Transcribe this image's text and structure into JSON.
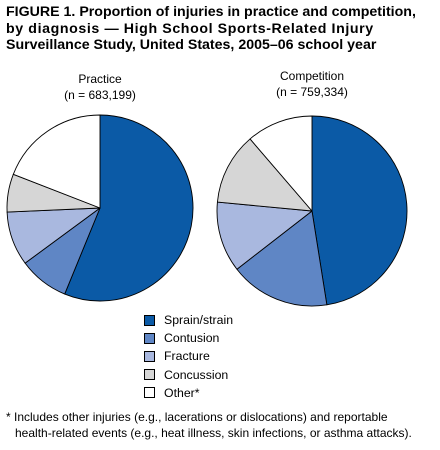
{
  "figure": {
    "title_line1": "FIGURE 1. Proportion of injuries in practice and competition,",
    "title_line2": "by diagnosis — High School Sports-Related Injury",
    "title_line3": "Surveillance Study, United States, 2005–06 school year"
  },
  "chart_data": [
    {
      "type": "pie",
      "title": "Practice",
      "subtitle": "(n = 683,199)",
      "categories": [
        "Sprain/strain",
        "Contusion",
        "Fracture",
        "Concussion",
        "Other*"
      ],
      "values": [
        56.2,
        8.7,
        9.4,
        6.6,
        19.1
      ]
    },
    {
      "type": "pie",
      "title": "Competition",
      "subtitle": "(n = 759,334)",
      "categories": [
        "Sprain/strain",
        "Contusion",
        "Fracture",
        "Concussion",
        "Other*"
      ],
      "values": [
        47.5,
        17.0,
        12.0,
        12.2,
        11.3
      ]
    }
  ],
  "legend": {
    "items": [
      {
        "label": "Sprain/strain",
        "color": "#0b5aa6"
      },
      {
        "label": "Contusion",
        "color": "#5f86c5"
      },
      {
        "label": "Fracture",
        "color": "#a9b8df"
      },
      {
        "label": "Concussion",
        "color": "#d6d6d6"
      },
      {
        "label": "Other*",
        "color": "#ffffff"
      }
    ]
  },
  "footnote": {
    "line1": "* Includes other injuries (e.g., lacerations or dislocations) and reportable",
    "line2": "health-related events (e.g., heat illness, skin infections, or asthma attacks)."
  }
}
